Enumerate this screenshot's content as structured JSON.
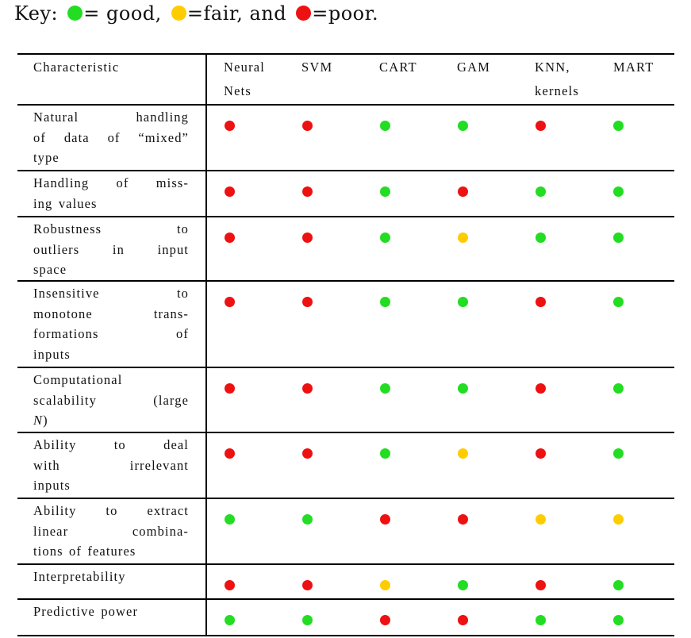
{
  "key": {
    "prefix": "Key: ",
    "good_label": "= good,",
    "fair_label": "=fair, and",
    "poor_label": "=poor."
  },
  "colors": {
    "good": "#22dd22",
    "fair": "#ffcc00",
    "poor": "#ee1111"
  },
  "table": {
    "header": {
      "characteristic": "Characteristic",
      "methods": [
        {
          "line1": "Neural",
          "line2": "Nets"
        },
        {
          "line1": "SVM",
          "line2": ""
        },
        {
          "line1": "CART",
          "line2": ""
        },
        {
          "line1": "GAM",
          "line2": ""
        },
        {
          "line1": "KNN,",
          "line2": "kernels"
        },
        {
          "line1": "MART",
          "line2": ""
        }
      ]
    },
    "rows": [
      {
        "lines": [
          "Natural handling",
          "of data of “mixed”",
          "type"
        ],
        "ratings": [
          "poor",
          "poor",
          "good",
          "good",
          "poor",
          "good"
        ]
      },
      {
        "lines": [
          "Handling of miss-",
          "ing values"
        ],
        "ratings": [
          "poor",
          "poor",
          "good",
          "poor",
          "good",
          "good"
        ]
      },
      {
        "lines": [
          "Robustness to",
          "outliers in input",
          "space"
        ],
        "ratings": [
          "poor",
          "poor",
          "good",
          "fair",
          "good",
          "good"
        ]
      },
      {
        "lines": [
          "Insensitive to",
          "monotone trans-",
          "formations of",
          "inputs"
        ],
        "ratings": [
          "poor",
          "poor",
          "good",
          "good",
          "poor",
          "good"
        ]
      },
      {
        "lines": [
          "Computational",
          "scalability (large",
          "N)"
        ],
        "ratings": [
          "poor",
          "poor",
          "good",
          "good",
          "poor",
          "good"
        ]
      },
      {
        "lines": [
          "Ability to deal",
          "with irrelevant",
          "inputs"
        ],
        "ratings": [
          "poor",
          "poor",
          "good",
          "fair",
          "poor",
          "good"
        ]
      },
      {
        "lines": [
          "Ability to extract",
          "linear combina-",
          "tions of features"
        ],
        "ratings": [
          "good",
          "good",
          "poor",
          "poor",
          "fair",
          "fair"
        ]
      },
      {
        "lines": [
          "Interpretability"
        ],
        "ratings": [
          "poor",
          "poor",
          "fair",
          "good",
          "poor",
          "good"
        ]
      },
      {
        "lines": [
          "Predictive power"
        ],
        "ratings": [
          "good",
          "good",
          "poor",
          "poor",
          "good",
          "good"
        ]
      }
    ]
  }
}
